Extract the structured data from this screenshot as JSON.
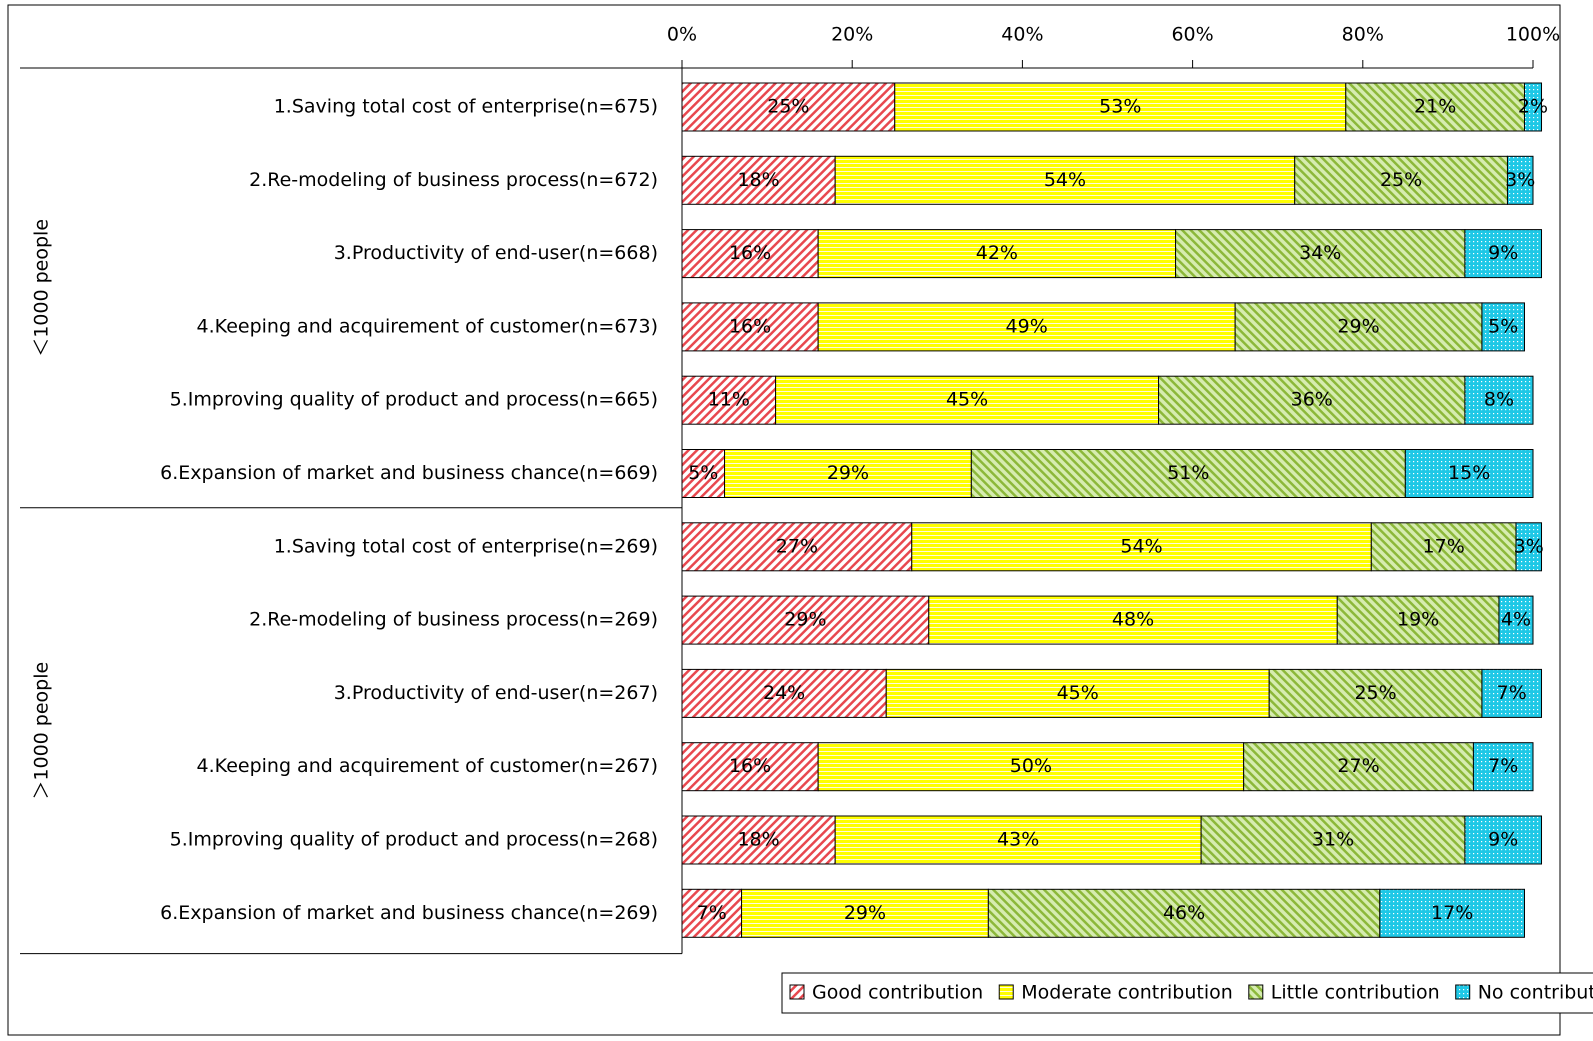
{
  "chart_data": {
    "type": "stacked_bar_horizontal",
    "groups": [
      {
        "label": "＜1000 people",
        "categories": [
          "1.Saving total cost of enterprise(n=675)",
          "2.Re-modeling of business process(n=672)",
          "3.Productivity of end-user(n=668)",
          "4.Keeping and acquirement of customer(n=673)",
          "5.Improving quality of product and process(n=665)",
          "6.Expansion of market and business chance(n=669)"
        ]
      },
      {
        "label": "＞1000 people",
        "categories": [
          "1.Saving total cost of enterprise(n=269)",
          "2.Re-modeling of business process(n=269)",
          "3.Productivity of end-user(n=267)",
          "4.Keeping and acquirement of customer(n=267)",
          "5.Improving quality of product and process(n=268)",
          "6.Expansion of market and business chance(n=269)"
        ]
      }
    ],
    "series": [
      {
        "name": "Good contribution",
        "color": "#e8484f",
        "values": [
          25,
          18,
          16,
          16,
          11,
          5,
          27,
          29,
          24,
          16,
          18,
          7
        ],
        "value_labels": [
          "25%",
          "18%",
          "16%",
          "16%",
          "11%",
          "5%",
          "27%",
          "29%",
          "24%",
          "16%",
          "18%",
          "7%"
        ]
      },
      {
        "name": "Moderate contribution",
        "color": "#ffff00",
        "values": [
          53,
          54,
          42,
          49,
          45,
          29,
          54,
          48,
          45,
          50,
          43,
          29
        ],
        "value_labels": [
          "53%",
          "54%",
          "42%",
          "49%",
          "45%",
          "29%",
          "54%",
          "48%",
          "45%",
          "50%",
          "43%",
          "29%"
        ]
      },
      {
        "name": "Little contribution",
        "color": "#8cb83a",
        "values": [
          21,
          25,
          34,
          29,
          36,
          51,
          17,
          19,
          25,
          27,
          31,
          46
        ],
        "value_labels": [
          "21%",
          "25%",
          "34%",
          "29%",
          "36%",
          "51%",
          "17%",
          "19%",
          "25%",
          "27%",
          "31%",
          "46%"
        ]
      },
      {
        "name": "No contribution",
        "color": "#1ec8e6",
        "values": [
          2,
          3,
          9,
          5,
          8,
          15,
          3,
          4,
          7,
          7,
          9,
          17
        ],
        "value_labels": [
          "2%",
          "3%",
          "9%",
          "5%",
          "8%",
          "15%",
          "3%",
          "4%",
          "7%",
          "7%",
          "9%",
          "17%"
        ]
      }
    ],
    "xlim": [
      0,
      100
    ],
    "xticks": [
      {
        "value": 0,
        "label": "0%"
      },
      {
        "value": 20,
        "label": "20%"
      },
      {
        "value": 40,
        "label": "40%"
      },
      {
        "value": 60,
        "label": "60%"
      },
      {
        "value": 80,
        "label": "80%"
      },
      {
        "value": 100,
        "label": "100%"
      }
    ],
    "legend": "bottom"
  }
}
